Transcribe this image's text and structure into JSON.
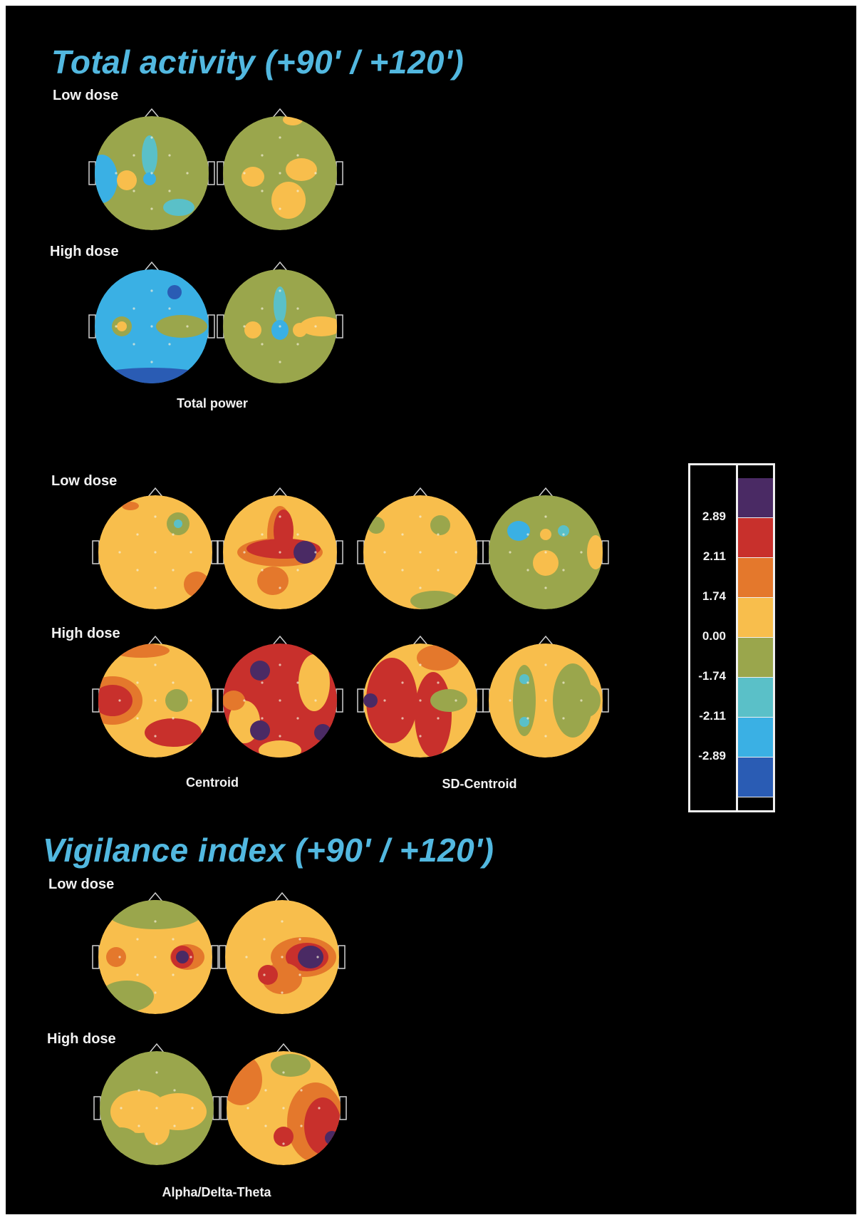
{
  "sections": {
    "total_activity_title": "Total activity  (+90' / +120')",
    "vigilance_title": "Vigilance index (+90' / +120')"
  },
  "rows": {
    "low_dose": "Low dose",
    "high_dose": "High dose"
  },
  "captions": {
    "total_power": "Total power",
    "centroid": "Centroid",
    "sd_centroid": "SD-Centroid",
    "alpha_delta_theta": "Alpha/Delta-Theta"
  },
  "color_scale": {
    "tick_labels": [
      "2.89",
      "2.11",
      "1.74",
      "0.00",
      "-1.74",
      "-2.11",
      "-2.89"
    ],
    "colors": [
      "#4a2a64",
      "#c8302c",
      "#e4782c",
      "#f8be4c",
      "#9aa64c",
      "#5ac0c8",
      "#3ab0e4",
      "#2a5cb4"
    ]
  },
  "map_colors": {
    "orange": "#f8be4c",
    "olive": "#9aa64c",
    "cyan": "#3ab0e4",
    "red": "#c8302c",
    "darkorange": "#e4782c",
    "purple": "#4a2a64",
    "teal": "#5ac0c8",
    "blue": "#2a5cb4"
  }
}
